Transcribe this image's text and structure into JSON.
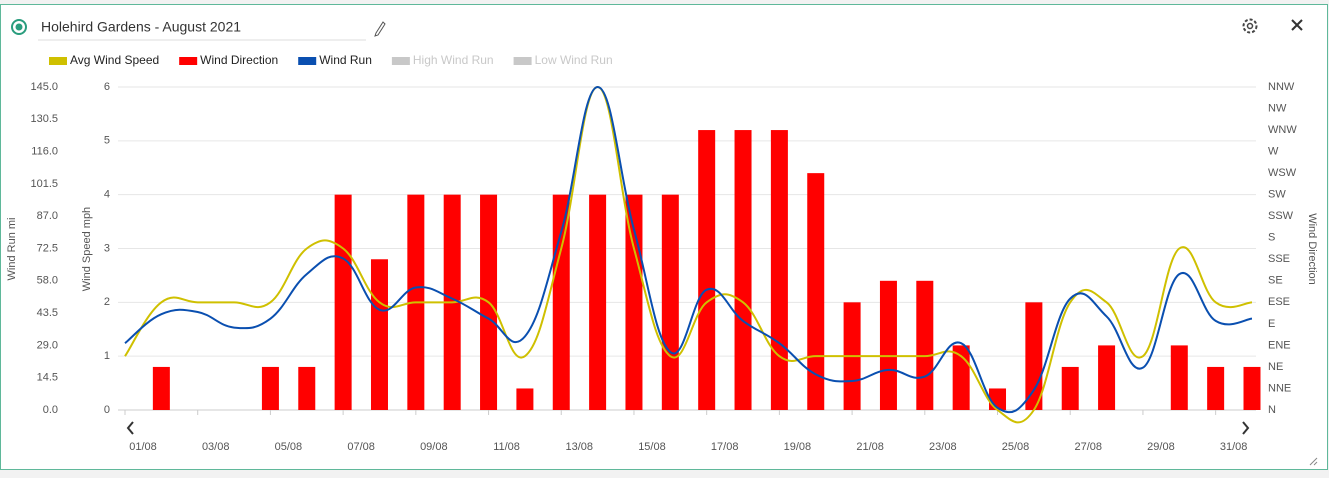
{
  "chart_data": {
    "type": "combo",
    "title": "Holehird Gardens - August 2021",
    "categories": [
      "01/08",
      null,
      "03/08",
      null,
      "05/08",
      null,
      "07/08",
      null,
      "09/08",
      null,
      "11/08",
      null,
      "13/08",
      null,
      "15/08",
      null,
      "17/08",
      null,
      "19/08",
      null,
      "21/08",
      null,
      "23/08",
      null,
      "25/08",
      null,
      "27/08",
      null,
      "29/08",
      null,
      "31/08",
      null
    ],
    "ylabel": "Wind Run mi",
    "ylim": [
      0,
      145
    ],
    "yticks": [
      {
        "value": 0,
        "label": "0.0"
      },
      14.5,
      {
        "value": 29,
        "label": "29.0"
      },
      43.5,
      {
        "value": 58,
        "label": "58.0"
      },
      72.5,
      {
        "value": 87,
        "label": "87.0"
      },
      101.5,
      {
        "value": 116,
        "label": "116.0"
      },
      130.5,
      {
        "value": 145,
        "label": "145.0"
      }
    ],
    "y2label": "Wind Speed mph",
    "y2lim": [
      0,
      6
    ],
    "y2ticks": [
      0,
      1,
      2,
      3,
      4,
      5,
      6
    ],
    "y3label": "Wind Direction",
    "y3categories": [
      "N",
      "NNE",
      "NE",
      "ENE",
      "E",
      "ESE",
      "SE",
      "SSE",
      "S",
      "SSW",
      "SW",
      "WSW",
      "W",
      "WNW",
      "NW",
      "NNW"
    ],
    "grid": true,
    "series": [
      {
        "name": "Avg Wind Speed",
        "type": "line",
        "axis": "y2",
        "color": "#cfc000",
        "values": [
          1,
          2,
          2,
          2,
          2,
          3,
          3,
          2,
          2,
          2,
          2,
          1,
          3,
          6,
          3,
          1,
          2,
          2,
          1,
          1,
          1,
          1,
          1,
          1,
          0,
          0,
          2,
          2,
          1,
          3,
          2,
          2
        ]
      },
      {
        "name": "Wind Direction",
        "type": "bar",
        "axis": "y3",
        "color": "#ff0000",
        "values": [
          0,
          2,
          0,
          0,
          2,
          2,
          10,
          7,
          10,
          10,
          10,
          1,
          10,
          10,
          10,
          10,
          13,
          13,
          13,
          11,
          5,
          6,
          6,
          3,
          1,
          5,
          2,
          3,
          0,
          3,
          2,
          2
        ]
      },
      {
        "name": "Wind Run",
        "type": "line",
        "axis": "y",
        "color": "#0a4fb0",
        "values": [
          30,
          43,
          44,
          37,
          41,
          61,
          68,
          45,
          55,
          50,
          41,
          33,
          80,
          145,
          81,
          26,
          54,
          40,
          30,
          16,
          13,
          18,
          15,
          30,
          1,
          9,
          50,
          42,
          19,
          61,
          40,
          41
        ]
      }
    ],
    "hidden_series": [
      {
        "name": "High Wind Run",
        "color": "#c8c8c8"
      },
      {
        "name": "Low Wind Run",
        "color": "#c8c8c8"
      }
    ]
  }
}
